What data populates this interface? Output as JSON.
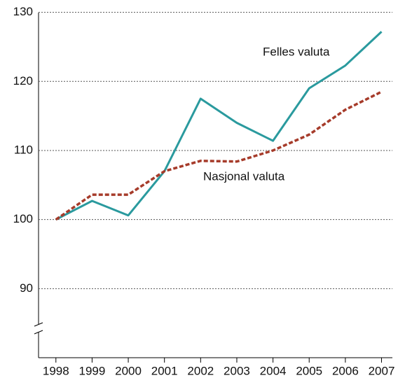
{
  "chart_data": {
    "type": "line",
    "x": [
      1998,
      1999,
      2000,
      2001,
      2002,
      2003,
      2004,
      2005,
      2006,
      2007
    ],
    "series": [
      {
        "name": "Felles valuta",
        "color": "#2a9a9e",
        "values": [
          100,
          102.7,
          100.6,
          107,
          117.5,
          114,
          111.4,
          119,
          122.3,
          127.2
        ]
      },
      {
        "name": "Nasjonal valuta",
        "color": "#a63b2a",
        "dashed": true,
        "values": [
          100,
          103.6,
          103.6,
          107,
          108.5,
          108.4,
          110,
          112.3,
          115.9,
          118.5
        ]
      }
    ],
    "xlim": [
      1997.52,
      2007.3
    ],
    "xticks": [
      1998,
      1999,
      2000,
      2001,
      2002,
      2003,
      2004,
      2005,
      2006,
      2007
    ],
    "ylim": [
      80,
      130
    ],
    "yticks": [
      90,
      100,
      110,
      120,
      130
    ],
    "grid": true
  }
}
